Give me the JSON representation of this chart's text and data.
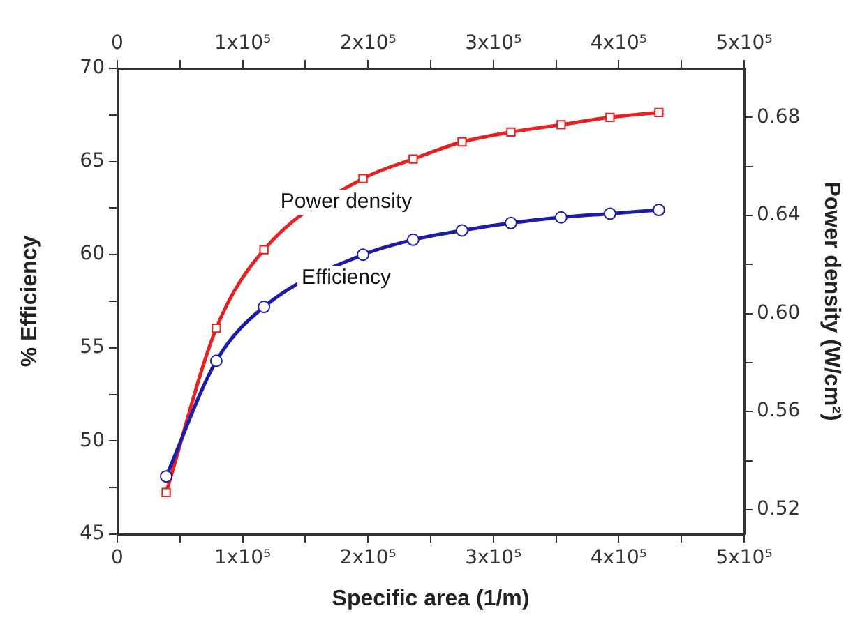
{
  "chart_data": {
    "type": "line",
    "xlabel": "Specific area (1/m)",
    "ylabel": "% Efficiency",
    "y2label": "Power density (W/cm²)",
    "x": [
      39000,
      79000,
      117000,
      196000,
      236000,
      275000,
      314000,
      354000,
      393000,
      432000
    ],
    "series": [
      {
        "name": "Efficiency",
        "color": "#1c1ca8",
        "marker": "circle",
        "values": [
          48.1,
          54.3,
          57.2,
          60.0,
          60.8,
          61.3,
          61.7,
          62.0,
          62.2,
          62.4
        ]
      },
      {
        "name": "Power density",
        "color": "#e52222",
        "marker": "square",
        "axis": "y2",
        "values": [
          0.527,
          0.594,
          0.626,
          0.655,
          0.663,
          0.67,
          0.674,
          0.677,
          0.68,
          0.682
        ]
      }
    ],
    "xlim": [
      0,
      500000
    ],
    "xticks": [
      0,
      {
        "value": 50000,
        "label": null
      },
      {
        "value": 100000,
        "label": "1x10⁵"
      },
      {
        "value": 150000,
        "label": null
      },
      {
        "value": 200000,
        "label": "2x10⁵"
      },
      {
        "value": 250000,
        "label": null
      },
      {
        "value": 300000,
        "label": "3x10⁵"
      },
      {
        "value": 350000,
        "label": null
      },
      {
        "value": 400000,
        "label": "4x10⁵"
      },
      {
        "value": 450000,
        "label": null
      },
      {
        "value": 500000,
        "label": "5x10⁵"
      }
    ],
    "x2lim": [
      0,
      500000
    ],
    "x2ticks": [
      0,
      {
        "value": 50000,
        "label": null
      },
      {
        "value": 100000,
        "label": "1x10⁵"
      },
      {
        "value": 150000,
        "label": null
      },
      {
        "value": 200000,
        "label": "2x10⁵"
      },
      {
        "value": 250000,
        "label": null
      },
      {
        "value": 300000,
        "label": "3x10⁵"
      },
      {
        "value": 350000,
        "label": null
      },
      {
        "value": 400000,
        "label": "4x10⁵"
      },
      {
        "value": 450000,
        "label": null
      },
      {
        "value": 500000,
        "label": "5x10⁵"
      }
    ],
    "ylim": [
      45,
      70
    ],
    "yticks": [
      45,
      {
        "value": 47.5,
        "label": null
      },
      50,
      {
        "value": 52.5,
        "label": null
      },
      55,
      {
        "value": 57.5,
        "label": null
      },
      60,
      {
        "value": 62.5,
        "label": null
      },
      65,
      {
        "value": 67.5,
        "label": null
      },
      70
    ],
    "y2lim": [
      0.51,
      0.7
    ],
    "y2ticks": [
      {
        "value": 0.52,
        "label": "0.52"
      },
      {
        "value": 0.54,
        "label": null
      },
      {
        "value": 0.56,
        "label": "0.56"
      },
      {
        "value": 0.58,
        "label": null
      },
      {
        "value": 0.6,
        "label": "0.60"
      },
      {
        "value": 0.62,
        "label": null
      },
      {
        "value": 0.64,
        "label": "0.64"
      },
      {
        "value": 0.66,
        "label": null
      },
      {
        "value": 0.68,
        "label": "0.68"
      }
    ],
    "grid": false,
    "legend": false,
    "line_style": "solid"
  }
}
